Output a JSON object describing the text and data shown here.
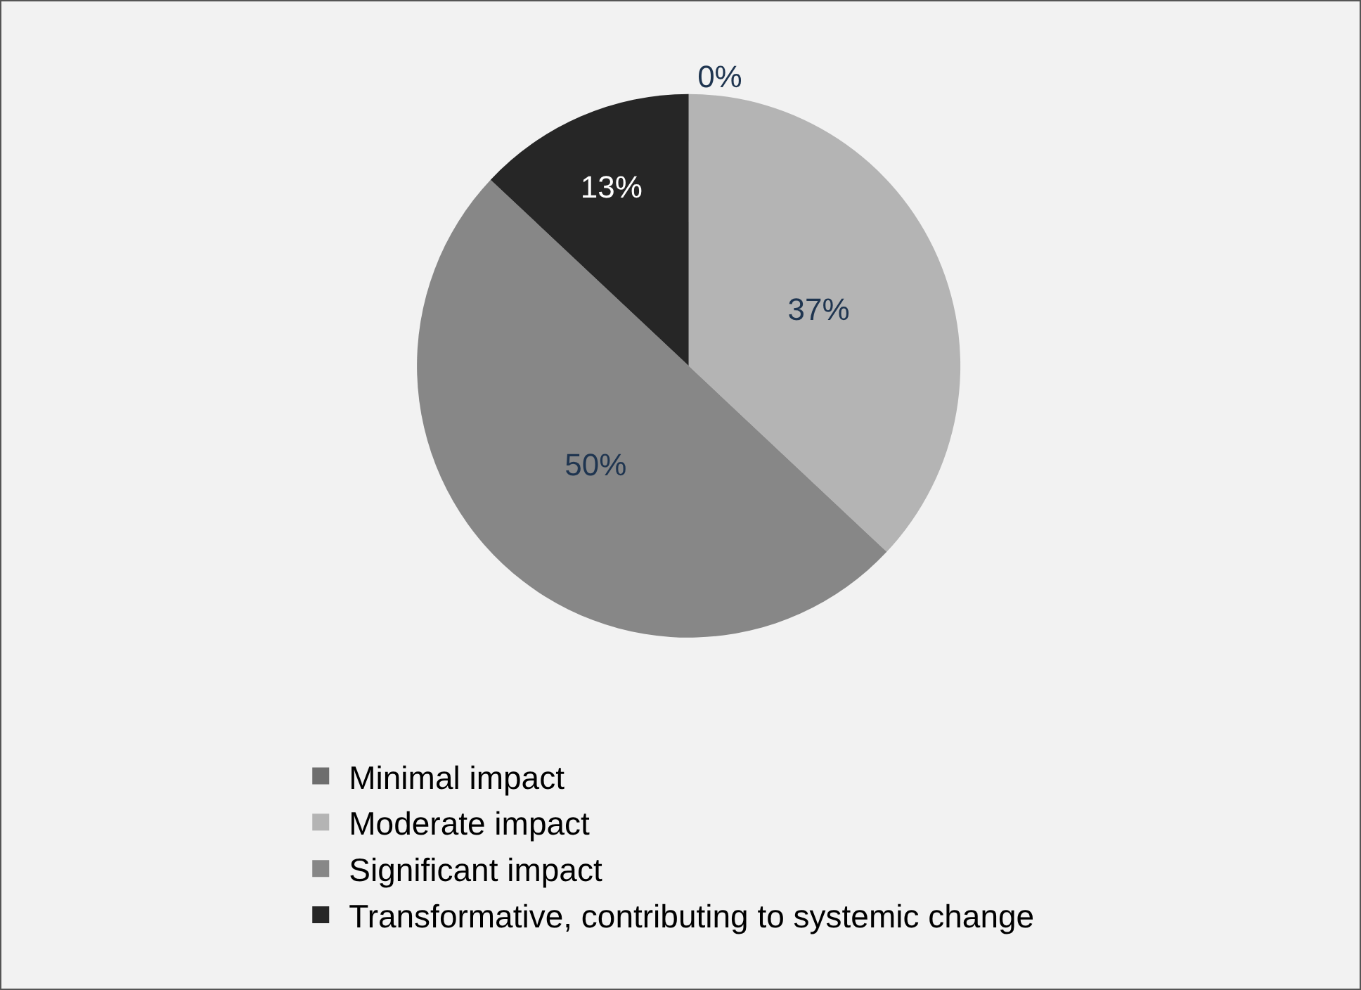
{
  "chart_data": {
    "type": "pie",
    "categories": [
      "Minimal impact",
      "Moderate impact",
      "Significant impact",
      "Transformative, contributing to systemic change"
    ],
    "values": [
      0,
      37,
      50,
      13
    ],
    "colors": [
      "#6e6e6e",
      "#b4b4b4",
      "#878787",
      "#262626"
    ],
    "value_labels": [
      "0%",
      "37%",
      "50%",
      "13%"
    ],
    "legend": "bottom"
  }
}
